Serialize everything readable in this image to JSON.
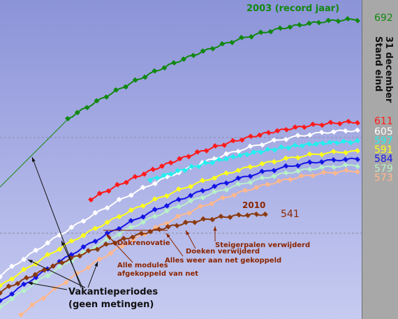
{
  "colors": {
    "bg_top": "#8c93d8",
    "bg_bottom": "#c6cbf1",
    "side_panel": "#a8a8a8",
    "annotation": "#8b2500"
  },
  "side_label": [
    "Stand eind",
    "31 december"
  ],
  "chart_data": {
    "type": "line",
    "title": "",
    "xlabel": "",
    "ylabel": "",
    "grid": "two dashed horizontal reference lines",
    "legend": "end-of-line value labels in right margin",
    "series": [
      {
        "label": "2003 (record jaar)",
        "end_value": 692,
        "color": "#118811"
      },
      {
        "label": "",
        "end_value": 611,
        "color": "#ff1a1a"
      },
      {
        "label": "",
        "end_value": 605,
        "color": "#ffffff"
      },
      {
        "label": "",
        "end_value": 597,
        "color": "#22f0f0"
      },
      {
        "label": "",
        "end_value": 591,
        "color": "#ffff1a"
      },
      {
        "label": "",
        "end_value": 584,
        "color": "#1414e6"
      },
      {
        "label": "",
        "end_value": 579,
        "color": "#b8f0c8"
      },
      {
        "label": "",
        "end_value": 573,
        "color": "#ffb88c"
      },
      {
        "label": "2010",
        "end_value": 541,
        "color": "#8b3a0f"
      }
    ],
    "annotations": [
      "Dakrenovatie",
      "Alle modules afgekoppeld van net",
      "Alles weer aan net gekoppeld",
      "Doeken verwijderd",
      "Steigerpalen verwijderd",
      "Vakantieperiodes",
      "(geen metingen)"
    ]
  }
}
